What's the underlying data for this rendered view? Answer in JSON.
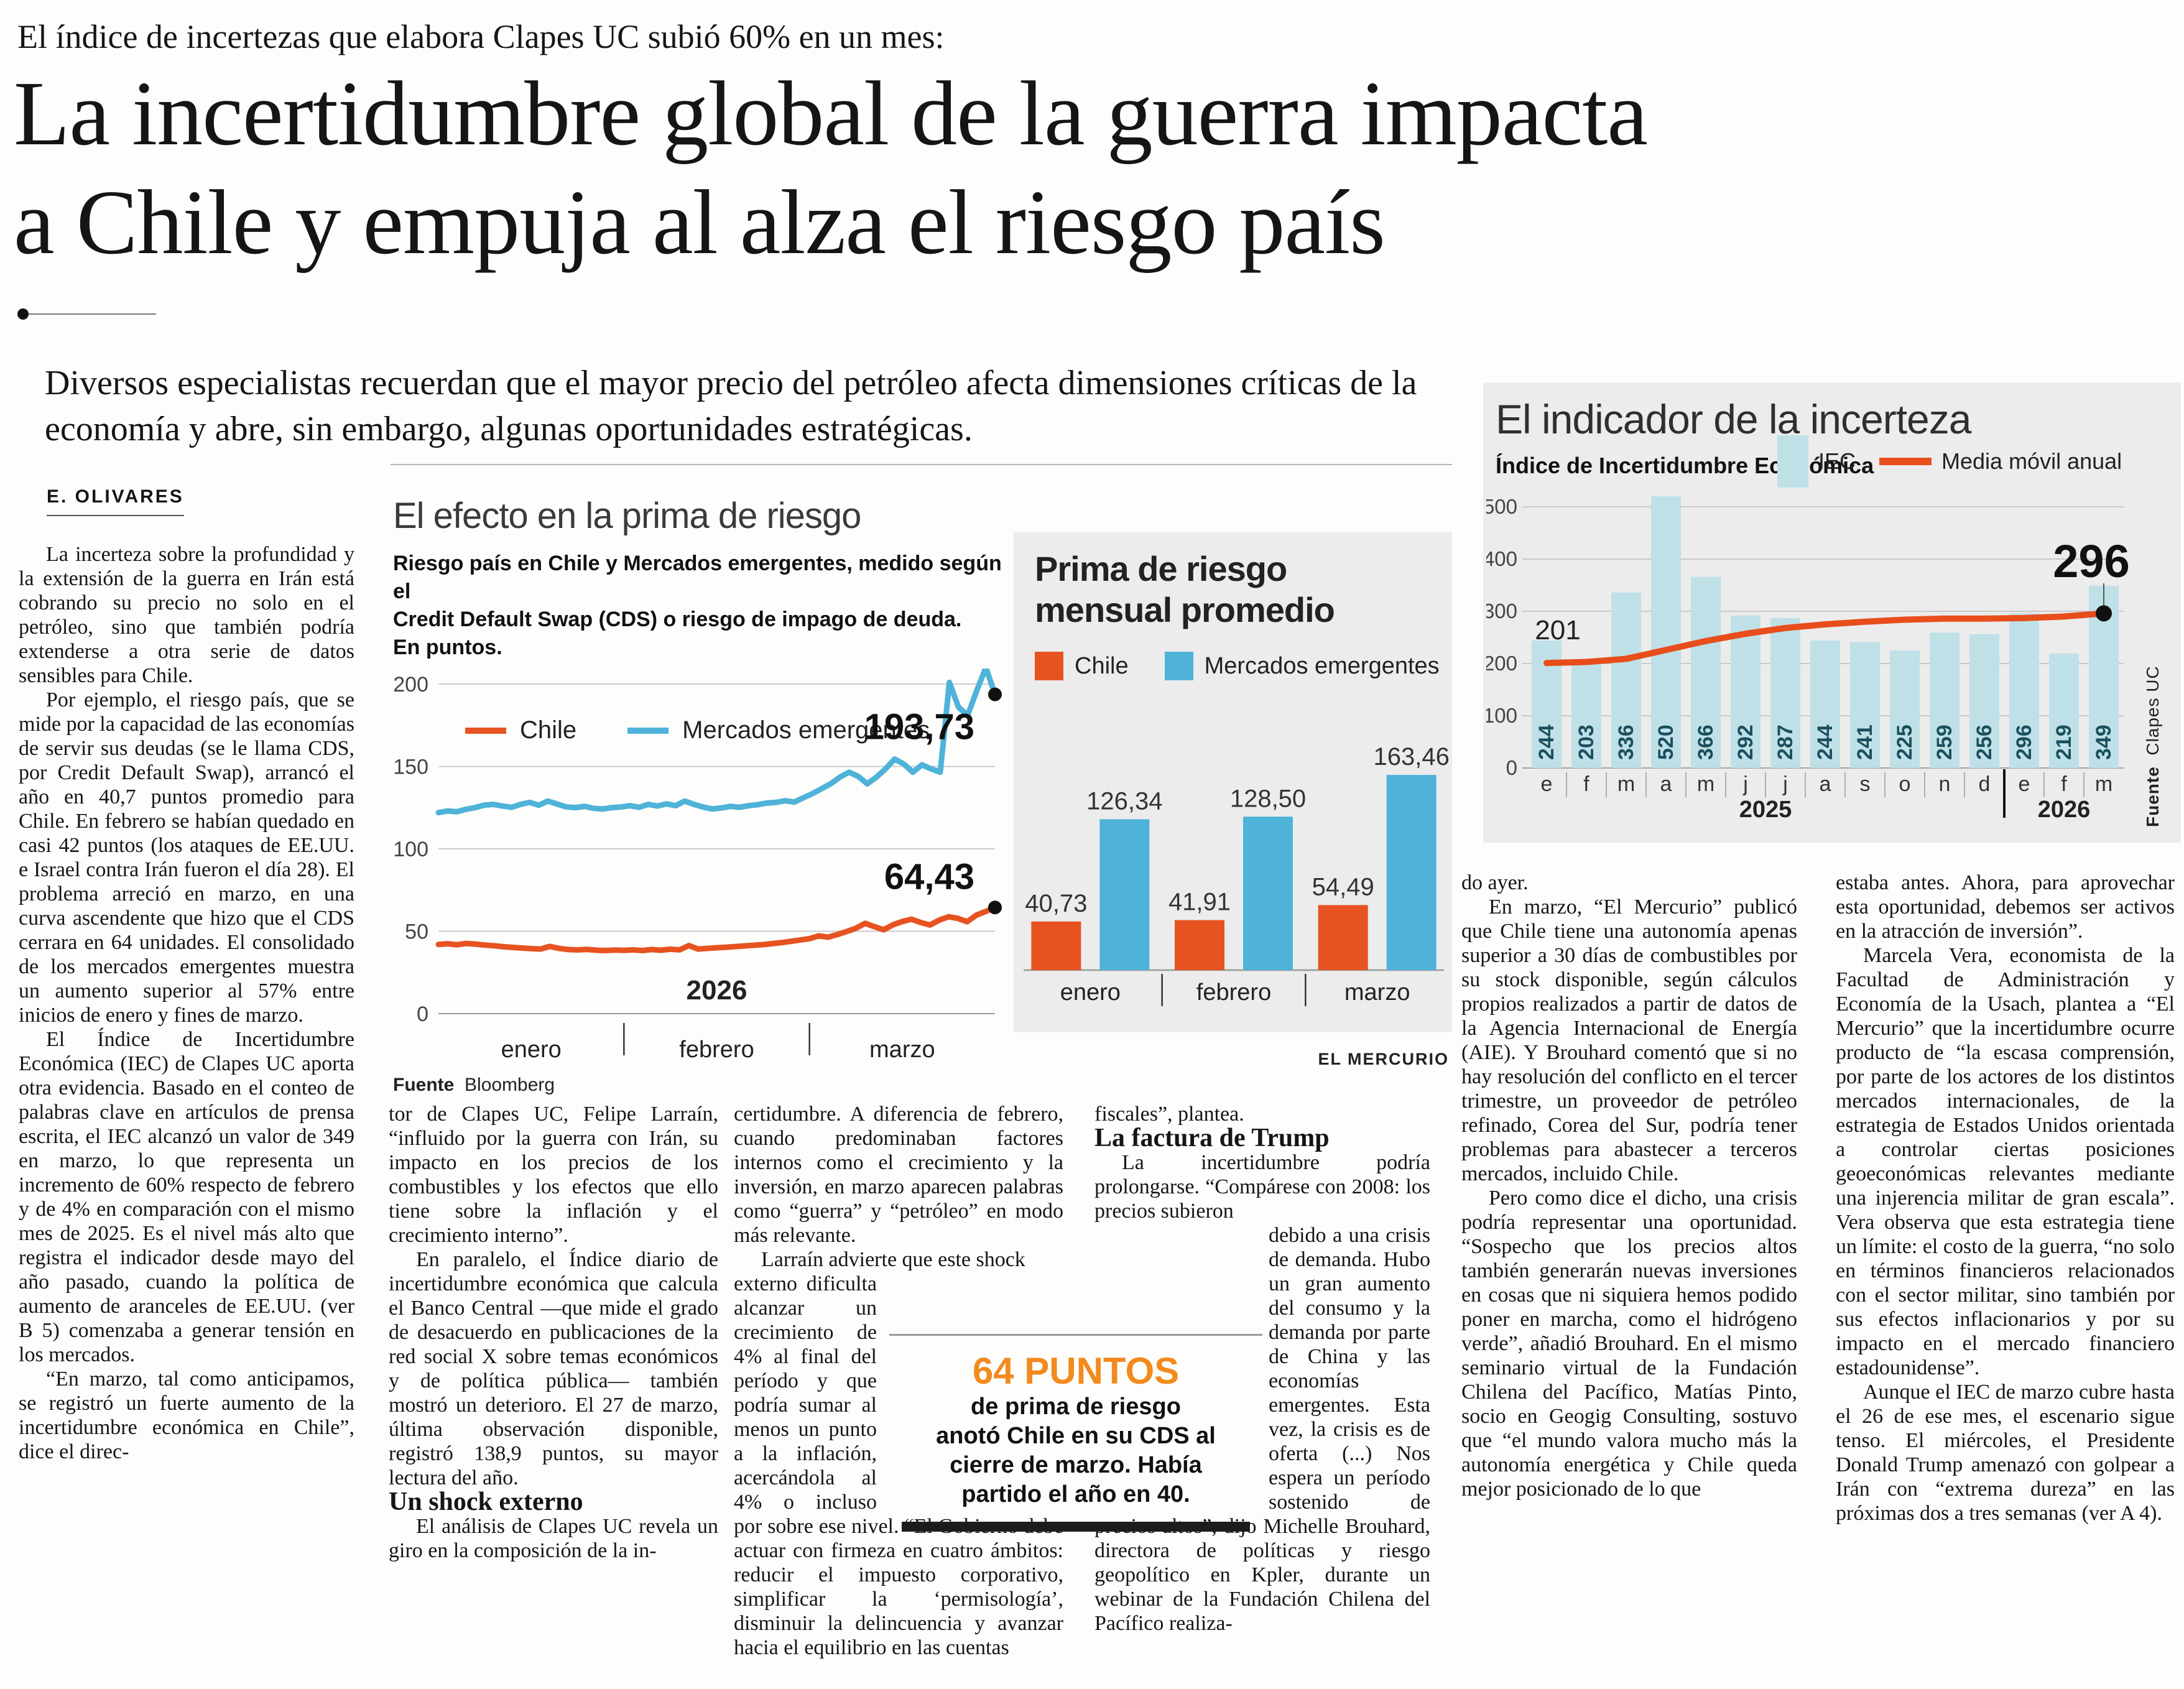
{
  "kicker": "El índice de incertezas que elabora Clapes UC subió 60% en un mes:",
  "headline": {
    "line1": "La incertidumbre global de la guerra impacta",
    "line2": "a Chile y empuja al alza el riesgo país"
  },
  "deck": "Diversos especialistas recuerdan que el mayor precio del petróleo afecta dimensiones críticas de la economía y abre, sin embargo, algunas oportunidades estratégicas.",
  "byline": "E. OLIVARES",
  "columns": {
    "col1": {
      "p1": "La incerteza sobre la profundidad y la extensión de la guerra en Irán está cobrando su precio no solo en el petróleo, sino que también podría extenderse a otra serie de datos sensibles para Chile.",
      "p2": "Por ejemplo, el riesgo país, que se mide por la capacidad de las economías de servir sus deudas (se le llama CDS, por Credit Default Swap), arrancó el año en 40,7 puntos promedio para Chile. En febrero se habían quedado en casi 42 puntos (los ataques de EE.UU. e Israel contra Irán fueron el día 28). El problema arreció en marzo, en una curva ascendente que hizo que el CDS cerrara en 64 unidades. El consolidado de los mercados emergentes muestra un aumento superior al 57% entre inicios de enero y fines de marzo.",
      "p3": "El Índice de Incertidumbre Económica (IEC) de Clapes UC aporta otra evidencia. Basado en el conteo de palabras clave en artículos de prensa escrita, el IEC alcanzó un valor de 349 en marzo, lo que representa un incremento de 60% respecto de febrero y de 4% en comparación con el mismo mes de 2025. Es el nivel más alto que registra el indicador desde mayo del año pasado, cuando la política de aumento de aranceles de EE.UU. (ver B 5) comenzaba a generar tensión en los mercados.",
      "p4": "“En marzo, tal como anticipamos, se registró un fuerte aumento de la incertidumbre económica en Chile”, dice el direc-"
    },
    "col2": {
      "p1": "tor de Clapes UC, Felipe Larraín, “influido por la guerra con Irán, su impacto en los precios de los combustibles y los efectos que ello tiene sobre la inflación y el crecimiento interno”.",
      "p2": "En paralelo, el Índice diario de incertidumbre económica que calcula el Banco Central —que mide el grado de desacuerdo en publicaciones de la red social X sobre temas económicos y de política pública— también mostró un deterioro. El 27 de marzo, última observación disponible, registró 138,9 puntos, su mayor lectura del año.",
      "subhead": "Un shock externo",
      "p3": "El análisis de Clapes UC revela un giro en la composición de la in-"
    },
    "col3": {
      "p1": "certidumbre. A diferencia de febrero, cuando predominaban factores internos como el crecimiento y la inversión, en marzo aparecen palabras como “guerra” y “petróleo” en modo más relevante.",
      "p2_lead": "Larraín advierte que este shock",
      "p2_rest": "externo dificulta alcanzar un crecimiento de 4% al final del período y que podría sumar al menos un punto a la inflación, acercándola al 4% o incluso por sobre ese nivel. “El Gobierno debe actuar con firmeza en cuatro ámbitos: reducir el impuesto corporativo, simplificar la ‘permisología’, disminuir la delincuencia y avanzar hacia el equilibrio en las cuentas"
    },
    "col4": {
      "p1": "fiscales”, plantea.",
      "subhead": "La factura de Trump",
      "p2_lead": "La incertidumbre podría prolongarse. “Compárese con 2008: los precios subieron",
      "p2_rest": "debido a una crisis de demanda. Hubo un gran aumento del consumo y la demanda por parte de China y las economías emergentes. Esta vez, la crisis es de oferta (...) Nos espera un período sostenido de precios altos”, dijo Michelle Brouhard, directora de políticas y riesgo geopolítico en Kpler, durante un webinar de la Fundación Chilena del Pacífico realiza-"
    },
    "col5": {
      "p1": "do ayer.",
      "p2": "En marzo, “El Mercurio” publicó que Chile tiene una autonomía apenas superior a 30 días de combustibles por su stock disponible, según cálculos propios realizados a partir de datos de la Agencia Internacional de Energía (AIE). Y Brouhard comentó que si no hay resolución del conflicto en el tercer trimestre, un proveedor de petróleo refinado, Corea del Sur, podría tener problemas para abastecer a terceros mercados, incluido Chile.",
      "p3": "Pero como dice el dicho, una crisis podría representar una oportunidad. “Sospecho que los precios altos también generarán nuevas inversiones en cosas que ni siquiera hemos podido poner en marcha, como el hidrógeno verde”, añadió Brouhard. En el mismo seminario virtual de la Fundación Chilena del Pacífico, Matías Pinto, socio en Geogig Consulting, sostuvo que “el mundo valora mucho más la autonomía energética y Chile queda mejor posicionado de lo que"
    },
    "col6": {
      "p1": "estaba antes. Ahora, para aprovechar esta oportunidad, debemos ser activos en la atracción de inversión”.",
      "p2": "Marcela Vera, economista de la Facultad de Administración y Economía de la Usach, plantea a “El Mercurio” que la incertidumbre ocurre producto de “la escasa comprensión, por parte de los actores de los distintos mercados internacionales, de la estrategia de Estados Unidos orientada a controlar ciertas posiciones geoeconómicas relevantes mediante una injerencia militar de gran escala”. Vera observa que esta estrategia tiene un límite: el costo de la guerra, “no solo en términos financieros relacionados con el sector militar, sino también por sus efectos inflacionarios y por su impacto en el mercado financiero estadounidense”.",
      "p3": "Aunque el IEC de marzo cubre hasta el 26 de ese mes, el escenario sigue tenso. El miércoles, el Presidente Donald Trump amenazó con golpear a Irán con “extrema dureza” en las próximas dos a tres semanas (ver A 4)."
    }
  },
  "callout": {
    "value": "64 PUNTOS",
    "lines": [
      "de prima de riesgo",
      "anotó Chile en su CDS al",
      "cierre de marzo. Había",
      "partido el año en 40."
    ],
    "accent_color": "#f28a1e"
  },
  "chart_data": [
    {
      "id": "cds",
      "type": "line",
      "title": "El efecto en la prima de riesgo",
      "subtitle_lines": [
        "Riesgo país en Chile y Mercados emergentes, medido según el",
        "Credit Default  Swap (CDS) o riesgo de impago de deuda.",
        "En puntos."
      ],
      "ylim": [
        0,
        200
      ],
      "yticks": [
        0,
        50,
        100,
        150,
        200
      ],
      "x_months": [
        "enero",
        "febrero",
        "marzo"
      ],
      "year_label": "2026",
      "grid": true,
      "legend_position": "top-left-inside",
      "series": [
        {
          "name": "Chile",
          "color": "#e65321",
          "end_label": "64,43",
          "end_value": 64.43,
          "values": [
            42.0,
            42.4,
            41.8,
            42.6,
            42.2,
            41.6,
            41.2,
            40.6,
            40.2,
            39.8,
            39.5,
            39.2,
            40.8,
            39.6,
            38.9,
            38.7,
            39.0,
            38.5,
            38.3,
            38.6,
            38.4,
            38.7,
            38.3,
            38.9,
            38.5,
            39.1,
            38.7,
            41.3,
            39.2,
            39.6,
            40.0,
            40.3,
            40.7,
            41.1,
            41.5,
            41.9,
            42.5,
            43.1,
            43.9,
            44.7,
            45.5,
            47.2,
            46.4,
            48.0,
            49.8,
            51.8,
            54.8,
            52.8,
            50.9,
            53.9,
            55.9,
            57.3,
            55.3,
            53.8,
            56.8,
            58.8,
            57.8,
            55.8,
            59.8,
            62.0,
            64.43
          ]
        },
        {
          "name": "Mercados emergentes",
          "color": "#4fb3d9",
          "end_label": "193,73",
          "end_value": 193.73,
          "values": [
            122,
            123,
            122.5,
            124,
            125,
            126.5,
            127,
            126,
            125.2,
            127,
            128.2,
            126.5,
            129,
            127.2,
            125.5,
            125,
            125.8,
            124.6,
            124.2,
            125,
            125.4,
            126.2,
            125.2,
            127,
            126,
            127.3,
            126.2,
            129,
            127,
            125.4,
            124.2,
            124.8,
            125.8,
            125.2,
            126.2,
            126.8,
            127.8,
            128.2,
            129.2,
            128.4,
            131,
            133.5,
            136.5,
            139.5,
            143.5,
            146.5,
            144,
            139.5,
            143.5,
            148.5,
            154.5,
            151.5,
            146.5,
            151,
            148.5,
            146.5,
            201,
            186,
            181,
            196,
            210,
            193.73
          ]
        }
      ],
      "source_label": "Fuente",
      "source": "Bloomberg"
    },
    {
      "id": "prima",
      "type": "bar",
      "title": "Prima de riesgo mensual promedio",
      "categories": [
        "enero",
        "febrero",
        "marzo"
      ],
      "series": [
        {
          "name": "Chile",
          "color": "#e65321",
          "values": [
            40.73,
            41.91,
            54.49
          ],
          "labels": [
            "40,73",
            "41,91",
            "54,49"
          ]
        },
        {
          "name": "Mercados emergentes",
          "color": "#4fb3d9",
          "values": [
            126.34,
            128.5,
            163.46
          ],
          "labels": [
            "126,34",
            "128,50",
            "163,46"
          ]
        }
      ],
      "ylim": [
        0,
        180
      ],
      "grid": false,
      "credit": "EL MERCURIO"
    },
    {
      "id": "iec",
      "type": "bar+line",
      "title": "El indicador de la incerteza",
      "subtitle": "Índice de Incertidumbre Económica",
      "legend": [
        "IEC",
        "Media móvil anual"
      ],
      "yticks": [
        0,
        100,
        200,
        300,
        400,
        500
      ],
      "ylim": [
        0,
        540
      ],
      "months": [
        "e",
        "f",
        "m",
        "a",
        "m",
        "j",
        "j",
        "a",
        "s",
        "o",
        "n",
        "d",
        "e",
        "f",
        "m"
      ],
      "year_groups": [
        {
          "label": "2025",
          "span": 12
        },
        {
          "label": "2026",
          "span": 3
        }
      ],
      "bars": [
        244,
        203,
        336,
        520,
        366,
        292,
        287,
        244,
        241,
        225,
        259,
        256,
        296,
        219,
        349
      ],
      "bar_color": "#bfe0e7",
      "bar_label_color": "#1a4f5e",
      "line": {
        "name": "Media móvil anual",
        "color": "#e84e1b",
        "values": [
          201,
          203,
          209,
          226,
          243,
          257,
          268,
          275,
          280,
          284,
          286,
          286,
          287,
          290,
          296
        ],
        "start_label": "201",
        "end_label": "296"
      },
      "source_label": "Fuente",
      "source": "Clapes UC"
    }
  ],
  "colors": {
    "chile_orange": "#e65321",
    "emergentes_blue": "#4fb3d9",
    "iec_bar": "#bfe0e7",
    "callout_orange": "#f28a1e",
    "panel_gray": "#ececec"
  }
}
